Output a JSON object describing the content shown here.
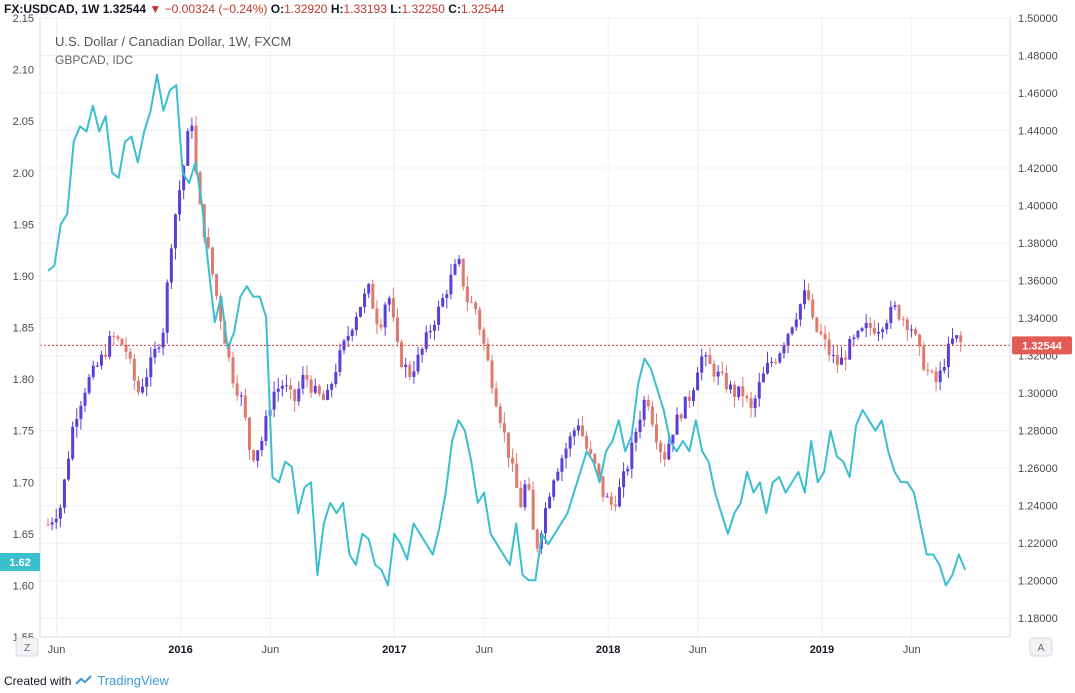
{
  "header": {
    "symbol": "FX:USDCAD, 1W",
    "last": "1.32544",
    "change_arrow": "▼",
    "change": "−0.00324 (−0.24%)",
    "o_label": "O:",
    "o_value": "1.32920",
    "h_label": "H:",
    "h_value": "1.33193",
    "l_label": "L:",
    "l_value": "1.32250",
    "c_label": "C:",
    "c_value": "1.32544"
  },
  "titles": {
    "main": "U.S. Dollar / Canadian Dollar, 1W, FXCM",
    "overlay": "GBPCAD, IDC"
  },
  "footer": {
    "created_with": "Created with",
    "brand": "TradingView"
  },
  "colors": {
    "up": "#5a3fd8",
    "down": "#e07a6e",
    "line": "#3bbfcf",
    "price_line": "#d83f3f",
    "badge_red": "#e25b55",
    "badge_teal": "#3bbfcf"
  },
  "chart_data": {
    "type": "candlestick_with_overlay_line",
    "timeframe": "1W",
    "x_axis": {
      "tick_labels": [
        "Jun",
        "2016",
        "Jun",
        "2017",
        "Jun",
        "2018",
        "Jun",
        "2019",
        "Jun"
      ],
      "tick_times": [
        2015.42,
        2016.0,
        2016.42,
        2017.0,
        2017.42,
        2018.0,
        2018.42,
        2019.0,
        2019.42
      ],
      "range": [
        2015.38,
        2019.73
      ]
    },
    "left_axis": {
      "series": "GBPCAD",
      "range": [
        1.55,
        2.15
      ],
      "tick_labels": [
        "1.55",
        "1.60",
        "1.65",
        "1.70",
        "1.75",
        "1.80",
        "1.85",
        "1.90",
        "1.95",
        "2.00",
        "2.05",
        "2.10",
        "2.15"
      ],
      "current_badge": "1.62"
    },
    "right_axis": {
      "series": "USDCAD",
      "range": [
        1.17,
        1.5
      ],
      "tick_labels": [
        "1.18000",
        "1.20000",
        "1.22000",
        "1.24000",
        "1.26000",
        "1.28000",
        "1.30000",
        "1.32000",
        "1.34000",
        "1.36000",
        "1.38000",
        "1.40000",
        "1.42000",
        "1.44000",
        "1.46000",
        "1.48000",
        "1.50000"
      ],
      "current_badge": "1.32544",
      "current_price": 1.32544
    },
    "usdcad_close_points": [
      [
        2015.38,
        1.23
      ],
      [
        2015.44,
        1.24
      ],
      [
        2015.5,
        1.285
      ],
      [
        2015.56,
        1.305
      ],
      [
        2015.62,
        1.316
      ],
      [
        2015.68,
        1.33
      ],
      [
        2015.74,
        1.325
      ],
      [
        2015.8,
        1.3
      ],
      [
        2015.86,
        1.315
      ],
      [
        2015.92,
        1.335
      ],
      [
        2015.96,
        1.385
      ],
      [
        2016.02,
        1.425
      ],
      [
        2016.05,
        1.45
      ],
      [
        2016.08,
        1.405
      ],
      [
        2016.13,
        1.375
      ],
      [
        2016.18,
        1.345
      ],
      [
        2016.24,
        1.31
      ],
      [
        2016.29,
        1.295
      ],
      [
        2016.33,
        1.265
      ],
      [
        2016.38,
        1.275
      ],
      [
        2016.43,
        1.3
      ],
      [
        2016.48,
        1.305
      ],
      [
        2016.53,
        1.295
      ],
      [
        2016.58,
        1.31
      ],
      [
        2016.63,
        1.3
      ],
      [
        2016.68,
        1.295
      ],
      [
        2016.73,
        1.315
      ],
      [
        2016.78,
        1.33
      ],
      [
        2016.83,
        1.345
      ],
      [
        2016.88,
        1.355
      ],
      [
        2016.93,
        1.335
      ],
      [
        2016.97,
        1.355
      ],
      [
        2017.02,
        1.32
      ],
      [
        2017.07,
        1.31
      ],
      [
        2017.12,
        1.32
      ],
      [
        2017.17,
        1.335
      ],
      [
        2017.21,
        1.345
      ],
      [
        2017.26,
        1.36
      ],
      [
        2017.3,
        1.37
      ],
      [
        2017.34,
        1.35
      ],
      [
        2017.38,
        1.345
      ],
      [
        2017.42,
        1.325
      ],
      [
        2017.47,
        1.3
      ],
      [
        2017.51,
        1.28
      ],
      [
        2017.55,
        1.26
      ],
      [
        2017.59,
        1.24
      ],
      [
        2017.62,
        1.255
      ],
      [
        2017.66,
        1.215
      ],
      [
        2017.7,
        1.235
      ],
      [
        2017.74,
        1.255
      ],
      [
        2017.78,
        1.265
      ],
      [
        2017.82,
        1.275
      ],
      [
        2017.86,
        1.285
      ],
      [
        2017.9,
        1.27
      ],
      [
        2017.94,
        1.26
      ],
      [
        2017.98,
        1.245
      ],
      [
        2018.02,
        1.24
      ],
      [
        2018.06,
        1.25
      ],
      [
        2018.1,
        1.265
      ],
      [
        2018.14,
        1.285
      ],
      [
        2018.18,
        1.3
      ],
      [
        2018.22,
        1.28
      ],
      [
        2018.26,
        1.265
      ],
      [
        2018.3,
        1.28
      ],
      [
        2018.34,
        1.29
      ],
      [
        2018.39,
        1.3
      ],
      [
        2018.43,
        1.32
      ],
      [
        2018.47,
        1.315
      ],
      [
        2018.51,
        1.31
      ],
      [
        2018.55,
        1.305
      ],
      [
        2018.59,
        1.3
      ],
      [
        2018.63,
        1.3
      ],
      [
        2018.67,
        1.29
      ],
      [
        2018.71,
        1.305
      ],
      [
        2018.75,
        1.315
      ],
      [
        2018.79,
        1.32
      ],
      [
        2018.83,
        1.33
      ],
      [
        2018.87,
        1.34
      ],
      [
        2018.93,
        1.355
      ],
      [
        2018.96,
        1.335
      ],
      [
        2019.0,
        1.33
      ],
      [
        2019.04,
        1.32
      ],
      [
        2019.08,
        1.315
      ],
      [
        2019.13,
        1.325
      ],
      [
        2019.17,
        1.33
      ],
      [
        2019.21,
        1.335
      ],
      [
        2019.26,
        1.335
      ],
      [
        2019.3,
        1.34
      ],
      [
        2019.34,
        1.345
      ],
      [
        2019.38,
        1.34
      ],
      [
        2019.42,
        1.335
      ],
      [
        2019.46,
        1.32
      ],
      [
        2019.5,
        1.31
      ],
      [
        2019.54,
        1.305
      ],
      [
        2019.58,
        1.32
      ],
      [
        2019.62,
        1.33
      ],
      [
        2019.66,
        1.3254
      ]
    ],
    "gbpcad_points": [
      [
        2015.38,
        1.905
      ],
      [
        2015.41,
        1.91
      ],
      [
        2015.44,
        1.95
      ],
      [
        2015.47,
        1.96
      ],
      [
        2015.5,
        2.03
      ],
      [
        2015.53,
        2.045
      ],
      [
        2015.56,
        2.04
      ],
      [
        2015.59,
        2.065
      ],
      [
        2015.62,
        2.04
      ],
      [
        2015.65,
        2.055
      ],
      [
        2015.68,
        2.0
      ],
      [
        2015.71,
        1.995
      ],
      [
        2015.74,
        2.03
      ],
      [
        2015.77,
        2.035
      ],
      [
        2015.8,
        2.01
      ],
      [
        2015.83,
        2.04
      ],
      [
        2015.86,
        2.06
      ],
      [
        2015.89,
        2.095
      ],
      [
        2015.92,
        2.06
      ],
      [
        2015.95,
        2.08
      ],
      [
        2015.98,
        2.085
      ],
      [
        2016.01,
        2.0
      ],
      [
        2016.04,
        1.99
      ],
      [
        2016.07,
        2.01
      ],
      [
        2016.1,
        1.97
      ],
      [
        2016.13,
        1.91
      ],
      [
        2016.16,
        1.855
      ],
      [
        2016.19,
        1.88
      ],
      [
        2016.22,
        1.83
      ],
      [
        2016.25,
        1.845
      ],
      [
        2016.28,
        1.88
      ],
      [
        2016.31,
        1.89
      ],
      [
        2016.34,
        1.88
      ],
      [
        2016.37,
        1.88
      ],
      [
        2016.4,
        1.86
      ],
      [
        2016.43,
        1.705
      ],
      [
        2016.46,
        1.7
      ],
      [
        2016.49,
        1.72
      ],
      [
        2016.52,
        1.715
      ],
      [
        2016.55,
        1.67
      ],
      [
        2016.58,
        1.695
      ],
      [
        2016.61,
        1.7
      ],
      [
        2016.64,
        1.61
      ],
      [
        2016.67,
        1.66
      ],
      [
        2016.7,
        1.68
      ],
      [
        2016.73,
        1.67
      ],
      [
        2016.76,
        1.68
      ],
      [
        2016.79,
        1.63
      ],
      [
        2016.82,
        1.62
      ],
      [
        2016.85,
        1.65
      ],
      [
        2016.88,
        1.645
      ],
      [
        2016.91,
        1.62
      ],
      [
        2016.94,
        1.615
      ],
      [
        2016.97,
        1.6
      ],
      [
        2017.0,
        1.65
      ],
      [
        2017.03,
        1.64
      ],
      [
        2017.06,
        1.625
      ],
      [
        2017.09,
        1.66
      ],
      [
        2017.12,
        1.65
      ],
      [
        2017.15,
        1.64
      ],
      [
        2017.18,
        1.63
      ],
      [
        2017.21,
        1.655
      ],
      [
        2017.24,
        1.69
      ],
      [
        2017.27,
        1.74
      ],
      [
        2017.3,
        1.76
      ],
      [
        2017.33,
        1.75
      ],
      [
        2017.36,
        1.72
      ],
      [
        2017.39,
        1.68
      ],
      [
        2017.42,
        1.69
      ],
      [
        2017.45,
        1.65
      ],
      [
        2017.48,
        1.64
      ],
      [
        2017.51,
        1.63
      ],
      [
        2017.54,
        1.62
      ],
      [
        2017.57,
        1.66
      ],
      [
        2017.6,
        1.61
      ],
      [
        2017.63,
        1.605
      ],
      [
        2017.66,
        1.605
      ],
      [
        2017.69,
        1.65
      ],
      [
        2017.72,
        1.64
      ],
      [
        2017.75,
        1.65
      ],
      [
        2017.78,
        1.66
      ],
      [
        2017.81,
        1.67
      ],
      [
        2017.84,
        1.69
      ],
      [
        2017.87,
        1.71
      ],
      [
        2017.9,
        1.73
      ],
      [
        2017.93,
        1.72
      ],
      [
        2017.96,
        1.7
      ],
      [
        2017.99,
        1.73
      ],
      [
        2018.02,
        1.74
      ],
      [
        2018.05,
        1.76
      ],
      [
        2018.08,
        1.73
      ],
      [
        2018.11,
        1.745
      ],
      [
        2018.14,
        1.795
      ],
      [
        2018.17,
        1.82
      ],
      [
        2018.2,
        1.81
      ],
      [
        2018.23,
        1.79
      ],
      [
        2018.26,
        1.77
      ],
      [
        2018.29,
        1.74
      ],
      [
        2018.32,
        1.73
      ],
      [
        2018.35,
        1.74
      ],
      [
        2018.38,
        1.73
      ],
      [
        2018.41,
        1.76
      ],
      [
        2018.44,
        1.73
      ],
      [
        2018.47,
        1.72
      ],
      [
        2018.5,
        1.69
      ],
      [
        2018.53,
        1.67
      ],
      [
        2018.56,
        1.65
      ],
      [
        2018.59,
        1.67
      ],
      [
        2018.62,
        1.68
      ],
      [
        2018.65,
        1.71
      ],
      [
        2018.68,
        1.69
      ],
      [
        2018.71,
        1.7
      ],
      [
        2018.74,
        1.67
      ],
      [
        2018.77,
        1.7
      ],
      [
        2018.8,
        1.705
      ],
      [
        2018.83,
        1.69
      ],
      [
        2018.86,
        1.7
      ],
      [
        2018.89,
        1.71
      ],
      [
        2018.92,
        1.69
      ],
      [
        2018.95,
        1.74
      ],
      [
        2018.98,
        1.7
      ],
      [
        2019.01,
        1.71
      ],
      [
        2019.04,
        1.75
      ],
      [
        2019.07,
        1.725
      ],
      [
        2019.1,
        1.72
      ],
      [
        2019.13,
        1.705
      ],
      [
        2019.16,
        1.755
      ],
      [
        2019.19,
        1.77
      ],
      [
        2019.22,
        1.76
      ],
      [
        2019.25,
        1.75
      ],
      [
        2019.28,
        1.76
      ],
      [
        2019.31,
        1.73
      ],
      [
        2019.34,
        1.71
      ],
      [
        2019.37,
        1.7
      ],
      [
        2019.4,
        1.7
      ],
      [
        2019.43,
        1.69
      ],
      [
        2019.46,
        1.66
      ],
      [
        2019.49,
        1.63
      ],
      [
        2019.52,
        1.63
      ],
      [
        2019.55,
        1.62
      ],
      [
        2019.58,
        1.6
      ],
      [
        2019.61,
        1.61
      ],
      [
        2019.64,
        1.63
      ],
      [
        2019.67,
        1.615
      ]
    ]
  }
}
